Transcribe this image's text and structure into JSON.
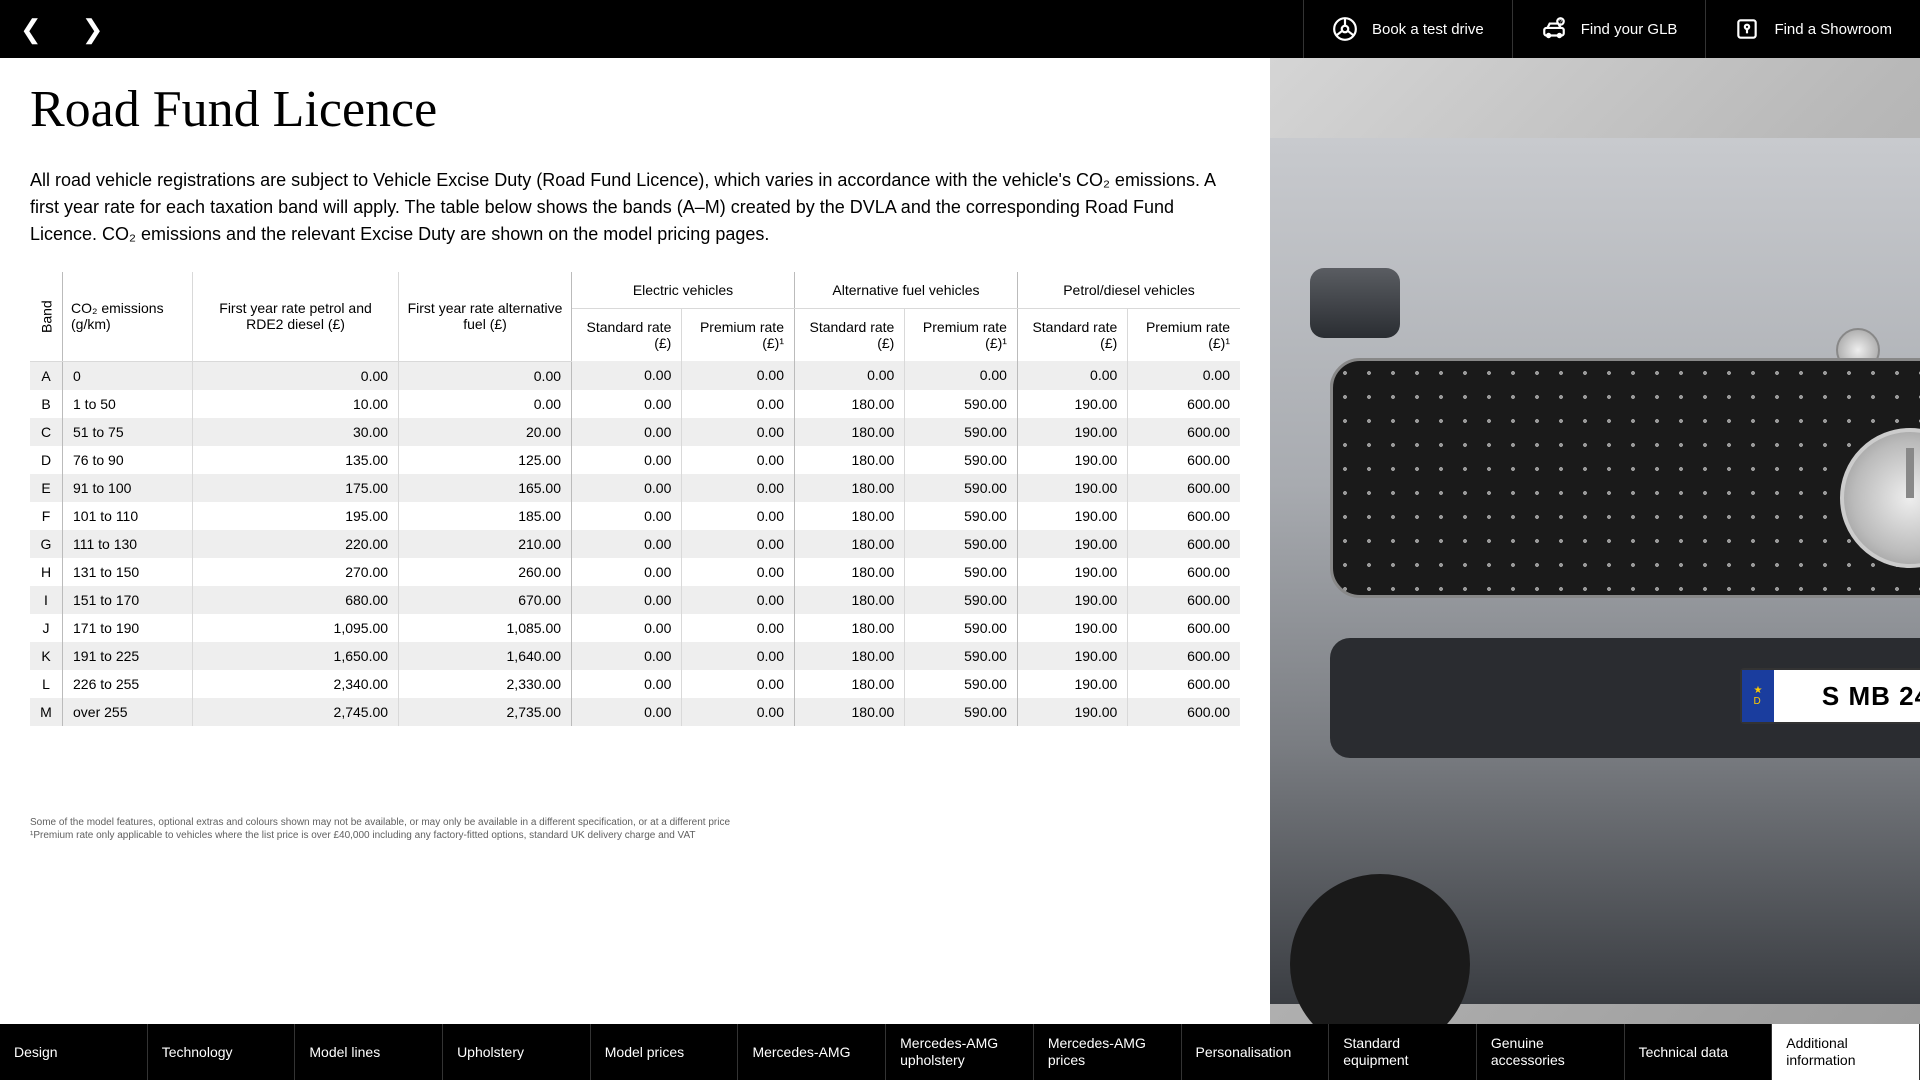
{
  "topbar": {
    "actions": [
      {
        "label": "Book a test drive",
        "icon": "steering-wheel"
      },
      {
        "label": "Find your GLB",
        "icon": "car-search"
      },
      {
        "label": "Find a Showroom",
        "icon": "location"
      }
    ]
  },
  "page": {
    "title": "Road Fund Licence",
    "intro": "All road vehicle registrations are subject to Vehicle Excise Duty (Road Fund Licence), which varies in accordance with the vehicle's CO₂ emissions. A first year rate for each taxation band will apply. The table below shows the bands (A–M) created by the DVLA and the corresponding Road Fund Licence. CO₂ emissions and the relevant Excise Duty are shown on the model pricing pages."
  },
  "table": {
    "band_label": "Band",
    "group_headers": [
      "Electric vehicles",
      "Alternative fuel vehicles",
      "Petrol/diesel vehicles"
    ],
    "columns": [
      "CO₂ emissions (g/km)",
      "First year rate petrol and RDE2 diesel (£)",
      "First year rate alternative fuel (£)",
      "Standard rate (£)",
      "Premium rate (£)¹",
      "Standard rate (£)",
      "Premium rate (£)¹",
      "Standard rate (£)",
      "Premium rate (£)¹"
    ],
    "rows": [
      {
        "band": "A",
        "cells": [
          "0",
          "0.00",
          "0.00",
          "0.00",
          "0.00",
          "0.00",
          "0.00",
          "0.00",
          "0.00"
        ]
      },
      {
        "band": "B",
        "cells": [
          "1 to 50",
          "10.00",
          "0.00",
          "0.00",
          "0.00",
          "180.00",
          "590.00",
          "190.00",
          "600.00"
        ]
      },
      {
        "band": "C",
        "cells": [
          "51 to 75",
          "30.00",
          "20.00",
          "0.00",
          "0.00",
          "180.00",
          "590.00",
          "190.00",
          "600.00"
        ]
      },
      {
        "band": "D",
        "cells": [
          "76 to 90",
          "135.00",
          "125.00",
          "0.00",
          "0.00",
          "180.00",
          "590.00",
          "190.00",
          "600.00"
        ]
      },
      {
        "band": "E",
        "cells": [
          "91 to 100",
          "175.00",
          "165.00",
          "0.00",
          "0.00",
          "180.00",
          "590.00",
          "190.00",
          "600.00"
        ]
      },
      {
        "band": "F",
        "cells": [
          "101 to 110",
          "195.00",
          "185.00",
          "0.00",
          "0.00",
          "180.00",
          "590.00",
          "190.00",
          "600.00"
        ]
      },
      {
        "band": "G",
        "cells": [
          "111 to 130",
          "220.00",
          "210.00",
          "0.00",
          "0.00",
          "180.00",
          "590.00",
          "190.00",
          "600.00"
        ]
      },
      {
        "band": "H",
        "cells": [
          "131 to 150",
          "270.00",
          "260.00",
          "0.00",
          "0.00",
          "180.00",
          "590.00",
          "190.00",
          "600.00"
        ]
      },
      {
        "band": "I",
        "cells": [
          "151 to 170",
          "680.00",
          "670.00",
          "0.00",
          "0.00",
          "180.00",
          "590.00",
          "190.00",
          "600.00"
        ]
      },
      {
        "band": "J",
        "cells": [
          "171 to 190",
          "1,095.00",
          "1,085.00",
          "0.00",
          "0.00",
          "180.00",
          "590.00",
          "190.00",
          "600.00"
        ]
      },
      {
        "band": "K",
        "cells": [
          "191 to 225",
          "1,650.00",
          "1,640.00",
          "0.00",
          "0.00",
          "180.00",
          "590.00",
          "190.00",
          "600.00"
        ]
      },
      {
        "band": "L",
        "cells": [
          "226 to 255",
          "2,340.00",
          "2,330.00",
          "0.00",
          "0.00",
          "180.00",
          "590.00",
          "190.00",
          "600.00"
        ]
      },
      {
        "band": "M",
        "cells": [
          "over 255",
          "2,745.00",
          "2,735.00",
          "0.00",
          "0.00",
          "180.00",
          "590.00",
          "190.00",
          "600.00"
        ]
      }
    ],
    "colors": {
      "row_stripe": "#eeeeee",
      "border": "#d9d9d9",
      "group_border": "#bbbbbb"
    }
  },
  "footnotes": [
    "Some of the model features, optional extras and colours shown may not be available, or may only be available in a different specification, or at a different price",
    "¹Premium rate only applicable to vehicles where the list price is over £40,000 including any factory-fitted options, standard UK delivery charge and VAT"
  ],
  "plate": {
    "text": "S MB 24"
  },
  "bottom_nav": {
    "items": [
      "Design",
      "Technology",
      "Model lines",
      "Upholstery",
      "Model prices",
      "Mercedes-AMG",
      "Mercedes-AMG upholstery",
      "Mercedes-AMG prices",
      "Personalisation",
      "Standard equipment",
      "Genuine accessories",
      "Technical data",
      "Additional information"
    ],
    "active_index": 12
  }
}
